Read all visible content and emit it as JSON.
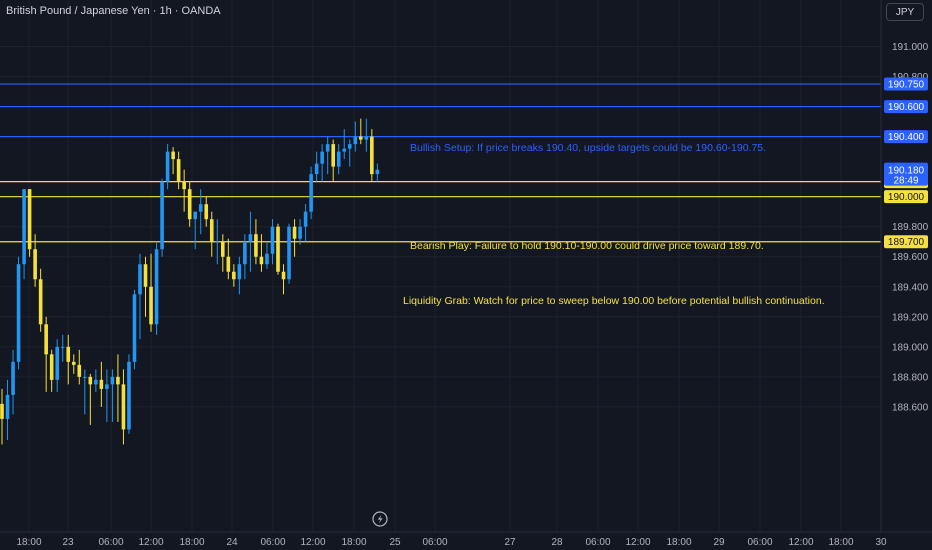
{
  "header": {
    "title": "British Pound / Japanese Yen · 1h · OANDA",
    "currency_button": "JPY"
  },
  "chart_data": {
    "type": "candlestick",
    "title": "British Pound / Japanese Yen · 1h · OANDA",
    "ylim": [
      188.45,
      191.22
    ],
    "y_ticks": [
      "191.000",
      "190.800",
      "189.800",
      "189.600",
      "189.400",
      "189.200",
      "189.000",
      "188.800",
      "188.600"
    ],
    "x_ticks": [
      "18:00",
      "23",
      "06:00",
      "12:00",
      "18:00",
      "24",
      "06:00",
      "12:00",
      "18:00",
      "25",
      "06:00",
      "27",
      "28",
      "06:00",
      "12:00",
      "18:00",
      "29",
      "06:00",
      "12:00",
      "18:00",
      "30"
    ],
    "current_price": {
      "value": "190.180",
      "countdown": "28:49",
      "color": "#2962ff"
    },
    "levels": [
      {
        "value": 190.75,
        "label": "190.750",
        "color": "#2962ff"
      },
      {
        "value": 190.6,
        "label": "190.600",
        "color": "#2962ff"
      },
      {
        "value": 190.4,
        "label": "190.400",
        "color": "#2962ff"
      },
      {
        "value": 190.1,
        "label": "190.100",
        "color": "#f5e13c"
      },
      {
        "value": 190.0,
        "label": "190.000",
        "color": "#f5e13c"
      },
      {
        "value": 189.7,
        "label": "189.700",
        "color": "#f5e13c"
      }
    ],
    "annotations": [
      {
        "text": "Bullish Setup: If price breaks 190.40, upside targets could be 190.60-190.75.",
        "color": "#2962ff"
      },
      {
        "text": "Bearish Play: Failure to hold 190.10-190.00 could drive price toward 189.70.",
        "color": "#f5e13c"
      },
      {
        "text": "Liquidity Grab: Watch for price to sweep below 190.00 before potential bullish continuation.",
        "color": "#f5e13c"
      }
    ],
    "series_colors": {
      "up": "#2196f3",
      "down": "#f5e13c"
    },
    "candles": [
      {
        "o": 188.62,
        "h": 188.72,
        "l": 188.35,
        "c": 188.52
      },
      {
        "o": 188.52,
        "h": 188.78,
        "l": 188.38,
        "c": 188.68
      },
      {
        "o": 188.68,
        "h": 188.98,
        "l": 188.55,
        "c": 188.9
      },
      {
        "o": 188.9,
        "h": 189.6,
        "l": 188.85,
        "c": 189.55
      },
      {
        "o": 189.55,
        "h": 190.05,
        "l": 189.45,
        "c": 190.05
      },
      {
        "o": 190.05,
        "h": 190.05,
        "l": 189.6,
        "c": 189.65
      },
      {
        "o": 189.65,
        "h": 189.75,
        "l": 189.4,
        "c": 189.45
      },
      {
        "o": 189.45,
        "h": 189.52,
        "l": 189.1,
        "c": 189.15
      },
      {
        "o": 189.15,
        "h": 189.2,
        "l": 188.7,
        "c": 188.95
      },
      {
        "o": 188.95,
        "h": 188.98,
        "l": 188.7,
        "c": 188.78
      },
      {
        "o": 188.78,
        "h": 189.05,
        "l": 188.7,
        "c": 189.0
      },
      {
        "o": 189.0,
        "h": 189.08,
        "l": 188.9,
        "c": 189.0
      },
      {
        "o": 189.0,
        "h": 189.08,
        "l": 188.75,
        "c": 188.9
      },
      {
        "o": 188.9,
        "h": 188.95,
        "l": 188.82,
        "c": 188.88
      },
      {
        "o": 188.88,
        "h": 188.98,
        "l": 188.75,
        "c": 188.8
      },
      {
        "o": 188.8,
        "h": 188.85,
        "l": 188.55,
        "c": 188.8
      },
      {
        "o": 188.8,
        "h": 188.82,
        "l": 188.48,
        "c": 188.75
      },
      {
        "o": 188.75,
        "h": 188.85,
        "l": 188.7,
        "c": 188.78
      },
      {
        "o": 188.78,
        "h": 188.9,
        "l": 188.6,
        "c": 188.72
      },
      {
        "o": 188.72,
        "h": 188.85,
        "l": 188.5,
        "c": 188.75
      },
      {
        "o": 188.75,
        "h": 188.85,
        "l": 188.5,
        "c": 188.8
      },
      {
        "o": 188.8,
        "h": 188.95,
        "l": 188.5,
        "c": 188.75
      },
      {
        "o": 188.75,
        "h": 188.85,
        "l": 188.35,
        "c": 188.45
      },
      {
        "o": 188.45,
        "h": 188.95,
        "l": 188.42,
        "c": 188.9
      },
      {
        "o": 188.9,
        "h": 189.38,
        "l": 188.85,
        "c": 189.35
      },
      {
        "o": 189.35,
        "h": 189.62,
        "l": 189.05,
        "c": 189.55
      },
      {
        "o": 189.55,
        "h": 189.6,
        "l": 189.2,
        "c": 189.4
      },
      {
        "o": 189.4,
        "h": 189.62,
        "l": 189.1,
        "c": 189.15
      },
      {
        "o": 189.15,
        "h": 189.7,
        "l": 189.08,
        "c": 189.65
      },
      {
        "o": 189.65,
        "h": 190.12,
        "l": 189.6,
        "c": 190.1
      },
      {
        "o": 190.1,
        "h": 190.35,
        "l": 190.05,
        "c": 190.3
      },
      {
        "o": 190.3,
        "h": 190.33,
        "l": 190.15,
        "c": 190.25
      },
      {
        "o": 190.25,
        "h": 190.3,
        "l": 190.05,
        "c": 190.1
      },
      {
        "o": 190.1,
        "h": 190.18,
        "l": 189.9,
        "c": 190.05
      },
      {
        "o": 190.05,
        "h": 190.1,
        "l": 189.8,
        "c": 189.85
      },
      {
        "o": 189.85,
        "h": 189.9,
        "l": 189.65,
        "c": 189.9
      },
      {
        "o": 189.9,
        "h": 190.05,
        "l": 189.75,
        "c": 189.95
      },
      {
        "o": 189.95,
        "h": 190.0,
        "l": 189.8,
        "c": 189.85
      },
      {
        "o": 189.85,
        "h": 189.9,
        "l": 189.6,
        "c": 189.7
      },
      {
        "o": 189.7,
        "h": 189.85,
        "l": 189.55,
        "c": 189.7
      },
      {
        "o": 189.7,
        "h": 189.75,
        "l": 189.5,
        "c": 189.6
      },
      {
        "o": 189.6,
        "h": 189.72,
        "l": 189.45,
        "c": 189.5
      },
      {
        "o": 189.5,
        "h": 189.55,
        "l": 189.4,
        "c": 189.45
      },
      {
        "o": 189.45,
        "h": 189.6,
        "l": 189.35,
        "c": 189.55
      },
      {
        "o": 189.55,
        "h": 189.75,
        "l": 189.45,
        "c": 189.7
      },
      {
        "o": 189.7,
        "h": 189.9,
        "l": 189.5,
        "c": 189.75
      },
      {
        "o": 189.75,
        "h": 189.85,
        "l": 189.55,
        "c": 189.6
      },
      {
        "o": 189.6,
        "h": 189.75,
        "l": 189.5,
        "c": 189.55
      },
      {
        "o": 189.55,
        "h": 189.7,
        "l": 189.52,
        "c": 189.62
      },
      {
        "o": 189.62,
        "h": 189.85,
        "l": 189.55,
        "c": 189.8
      },
      {
        "o": 189.8,
        "h": 189.82,
        "l": 189.48,
        "c": 189.5
      },
      {
        "o": 189.5,
        "h": 189.55,
        "l": 189.35,
        "c": 189.45
      },
      {
        "o": 189.45,
        "h": 189.82,
        "l": 189.42,
        "c": 189.8
      },
      {
        "o": 189.8,
        "h": 189.85,
        "l": 189.6,
        "c": 189.72
      },
      {
        "o": 189.72,
        "h": 189.85,
        "l": 189.68,
        "c": 189.8
      },
      {
        "o": 189.8,
        "h": 189.95,
        "l": 189.7,
        "c": 189.9
      },
      {
        "o": 189.9,
        "h": 190.2,
        "l": 189.85,
        "c": 190.15
      },
      {
        "o": 190.15,
        "h": 190.3,
        "l": 190.1,
        "c": 190.22
      },
      {
        "o": 190.22,
        "h": 190.35,
        "l": 190.1,
        "c": 190.3
      },
      {
        "o": 190.3,
        "h": 190.4,
        "l": 190.15,
        "c": 190.35
      },
      {
        "o": 190.35,
        "h": 190.38,
        "l": 190.1,
        "c": 190.2
      },
      {
        "o": 190.2,
        "h": 190.35,
        "l": 190.15,
        "c": 190.3
      },
      {
        "o": 190.3,
        "h": 190.45,
        "l": 190.25,
        "c": 190.32
      },
      {
        "o": 190.32,
        "h": 190.38,
        "l": 190.2,
        "c": 190.35
      },
      {
        "o": 190.35,
        "h": 190.5,
        "l": 190.3,
        "c": 190.4
      },
      {
        "o": 190.4,
        "h": 190.52,
        "l": 190.35,
        "c": 190.38
      },
      {
        "o": 190.38,
        "h": 190.52,
        "l": 190.3,
        "c": 190.4
      },
      {
        "o": 190.4,
        "h": 190.45,
        "l": 190.1,
        "c": 190.15
      },
      {
        "o": 190.15,
        "h": 190.22,
        "l": 190.1,
        "c": 190.18
      }
    ]
  }
}
